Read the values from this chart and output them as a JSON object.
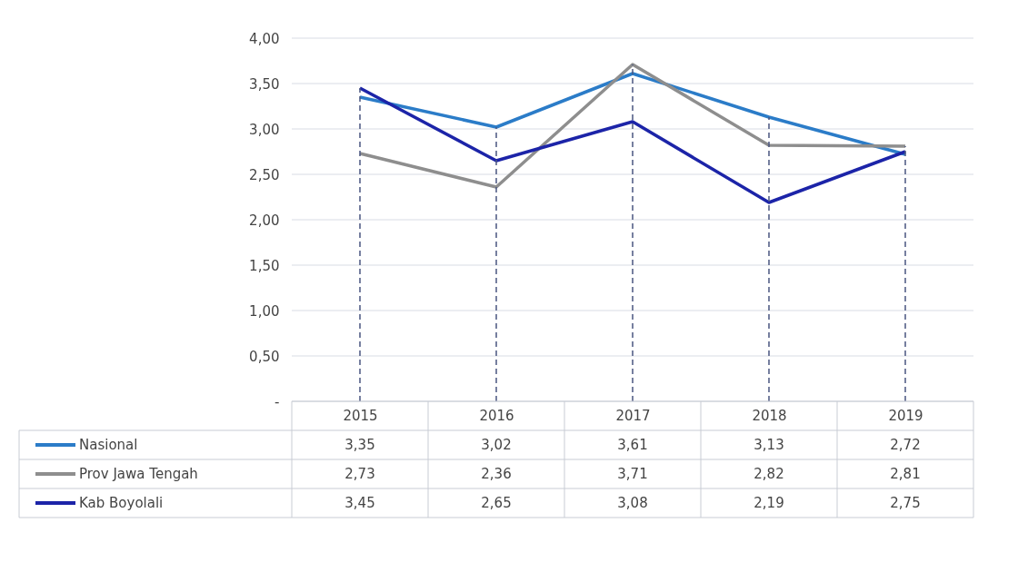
{
  "chart_data": {
    "type": "line",
    "categories": [
      "2015",
      "2016",
      "2017",
      "2018",
      "2019"
    ],
    "series": [
      {
        "name": "Nasional",
        "color": "#2b7cc8",
        "values": [
          3.35,
          3.02,
          3.61,
          3.13,
          2.72
        ],
        "value_labels": [
          "3,35",
          "3,02",
          "3,61",
          "3,13",
          "2,72"
        ]
      },
      {
        "name": "Prov Jawa Tengah",
        "color": "#8e8e8e",
        "values": [
          2.73,
          2.36,
          3.71,
          2.82,
          2.81
        ],
        "value_labels": [
          "2,73",
          "2,36",
          "3,71",
          "2,82",
          "2,81"
        ]
      },
      {
        "name": "Kab Boyolali",
        "color": "#1c24a8",
        "values": [
          3.45,
          2.65,
          3.08,
          2.19,
          2.75
        ],
        "value_labels": [
          "3,45",
          "2,65",
          "3,08",
          "2,19",
          "2,75"
        ]
      }
    ],
    "ylim": [
      0,
      4
    ],
    "yticks": [
      {
        "value": 0,
        "label": "-"
      },
      {
        "value": 0.5,
        "label": "0,50"
      },
      {
        "value": 1,
        "label": "1,00"
      },
      {
        "value": 1.5,
        "label": "1,50"
      },
      {
        "value": 2,
        "label": "2,00"
      },
      {
        "value": 2.5,
        "label": "2,50"
      },
      {
        "value": 3,
        "label": "3,00"
      },
      {
        "value": 3.5,
        "label": "3,50"
      },
      {
        "value": 4,
        "label": "4,00"
      }
    ],
    "grid": "y",
    "legend": "bottom left",
    "marker": "none",
    "line_style": "solid",
    "ref_lines": [
      {
        "axis": "x",
        "value": "2015",
        "line_style": "dashed",
        "color": "#4a5680"
      },
      {
        "axis": "x",
        "value": "2016",
        "line_style": "dashed",
        "color": "#4a5680"
      },
      {
        "axis": "x",
        "value": "2017",
        "line_style": "dashed",
        "color": "#4a5680"
      },
      {
        "axis": "x",
        "value": "2018",
        "line_style": "dashed",
        "color": "#4a5680"
      },
      {
        "axis": "x",
        "value": "2019",
        "line_style": "dashed",
        "color": "#4a5680"
      }
    ]
  }
}
